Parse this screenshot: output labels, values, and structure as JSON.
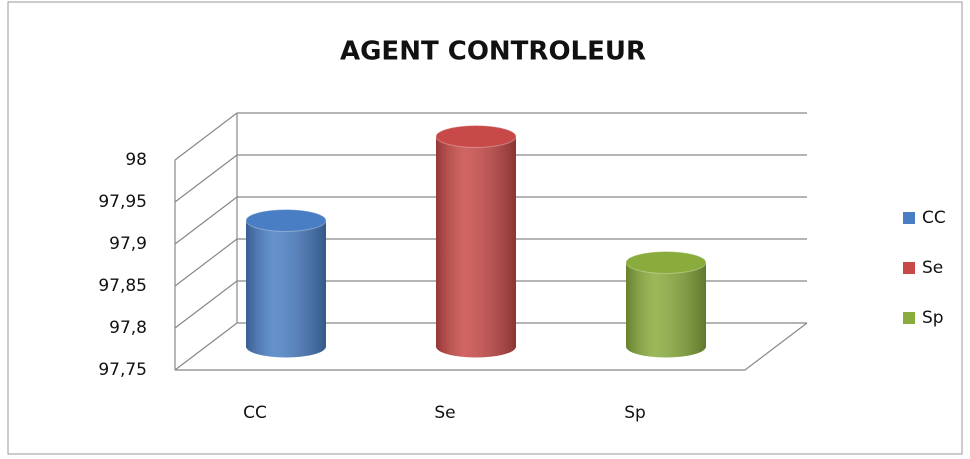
{
  "chart_data": {
    "type": "bar",
    "title": "AGENT CONTROLEUR",
    "categories": [
      "CC",
      "Se",
      "Sp"
    ],
    "values": [
      97.9,
      98,
      97.85
    ],
    "colors": [
      "#4a7ec4",
      "#c84a48",
      "#8aac3c"
    ],
    "ylim": [
      97.75,
      98
    ],
    "yticks": [
      {
        "value": 97.75,
        "label": "97,75"
      },
      {
        "value": 97.8,
        "label": "97,8"
      },
      {
        "value": 97.85,
        "label": "97,85"
      },
      {
        "value": 97.9,
        "label": "97,9"
      },
      {
        "value": 97.95,
        "label": "97,95"
      },
      98
    ],
    "grid": true,
    "legend": "right"
  }
}
